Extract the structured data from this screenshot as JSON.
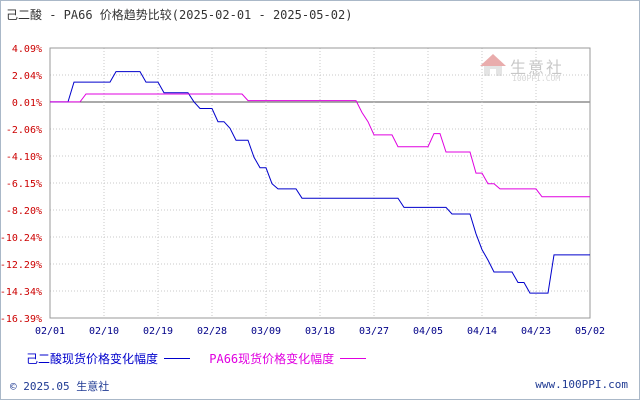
{
  "title": "己二酸 - PA66 价格趋势比较(2025-02-01 - 2025-05-02)",
  "watermark": {
    "text": "生意社",
    "url": "100PPI.COM"
  },
  "footer": {
    "left": "© 2025.05 生意社",
    "right": "www.100PPI.com"
  },
  "colors": {
    "series1": "#0000cc",
    "series2": "#e000e0",
    "ytick": "#cc0000",
    "xtick": "#000088",
    "grid": "#c8c8c8",
    "zero": "#555555"
  },
  "chart_data": {
    "type": "line",
    "title": "己二酸 - PA66 价格趋势比较(2025-02-01 - 2025-05-02)",
    "xlabel": "",
    "ylabel": "",
    "x_ticks": [
      "02/01",
      "02/10",
      "02/19",
      "02/28",
      "03/09",
      "03/18",
      "03/27",
      "04/05",
      "04/14",
      "04/23",
      "05/02"
    ],
    "y_ticks": [
      "4.09%",
      "2.04%",
      "0.01%",
      "-2.06%",
      "-4.10%",
      "-6.15%",
      "-8.20%",
      "-10.24%",
      "-12.29%",
      "-14.34%",
      "-16.39%"
    ],
    "ylim": [
      -16.39,
      4.09
    ],
    "grid": true,
    "legend_position": "bottom",
    "series": [
      {
        "name": "己二酸现货价格变化幅度",
        "points": [
          [
            "2025-02-01",
            0.0
          ],
          [
            "2025-02-04",
            0.0
          ],
          [
            "2025-02-05",
            1.5
          ],
          [
            "2025-02-11",
            1.5
          ],
          [
            "2025-02-12",
            2.3
          ],
          [
            "2025-02-16",
            2.3
          ],
          [
            "2025-02-17",
            1.5
          ],
          [
            "2025-02-19",
            1.5
          ],
          [
            "2025-02-20",
            0.7
          ],
          [
            "2025-02-24",
            0.7
          ],
          [
            "2025-02-25",
            0.0
          ],
          [
            "2025-02-26",
            -0.5
          ],
          [
            "2025-02-28",
            -0.5
          ],
          [
            "2025-03-01",
            -1.5
          ],
          [
            "2025-03-02",
            -1.5
          ],
          [
            "2025-03-03",
            -2.0
          ],
          [
            "2025-03-04",
            -2.9
          ],
          [
            "2025-03-06",
            -2.9
          ],
          [
            "2025-03-07",
            -4.2
          ],
          [
            "2025-03-08",
            -5.0
          ],
          [
            "2025-03-09",
            -5.0
          ],
          [
            "2025-03-10",
            -6.2
          ],
          [
            "2025-03-11",
            -6.6
          ],
          [
            "2025-03-14",
            -6.6
          ],
          [
            "2025-03-15",
            -7.3
          ],
          [
            "2025-03-31",
            -7.3
          ],
          [
            "2025-04-01",
            -8.0
          ],
          [
            "2025-04-08",
            -8.0
          ],
          [
            "2025-04-09",
            -8.5
          ],
          [
            "2025-04-12",
            -8.5
          ],
          [
            "2025-04-13",
            -10.0
          ],
          [
            "2025-04-14",
            -11.2
          ],
          [
            "2025-04-15",
            -12.0
          ],
          [
            "2025-04-16",
            -12.9
          ],
          [
            "2025-04-19",
            -12.9
          ],
          [
            "2025-04-20",
            -13.7
          ],
          [
            "2025-04-21",
            -13.7
          ],
          [
            "2025-04-22",
            -14.5
          ],
          [
            "2025-04-25",
            -14.5
          ],
          [
            "2025-04-26",
            -11.6
          ],
          [
            "2025-05-02",
            -11.6
          ]
        ]
      },
      {
        "name": "PA66现货价格变化幅度",
        "points": [
          [
            "2025-02-01",
            0.0
          ],
          [
            "2025-02-06",
            0.0
          ],
          [
            "2025-02-07",
            0.6
          ],
          [
            "2025-02-26",
            0.6
          ],
          [
            "2025-02-27",
            0.6
          ],
          [
            "2025-03-05",
            0.6
          ],
          [
            "2025-03-06",
            0.1
          ],
          [
            "2025-03-24",
            0.1
          ],
          [
            "2025-03-25",
            -0.8
          ],
          [
            "2025-03-26",
            -1.5
          ],
          [
            "2025-03-27",
            -2.5
          ],
          [
            "2025-03-30",
            -2.5
          ],
          [
            "2025-03-31",
            -3.4
          ],
          [
            "2025-04-05",
            -3.4
          ],
          [
            "2025-04-06",
            -2.4
          ],
          [
            "2025-04-07",
            -2.4
          ],
          [
            "2025-04-08",
            -3.8
          ],
          [
            "2025-04-12",
            -3.8
          ],
          [
            "2025-04-13",
            -5.4
          ],
          [
            "2025-04-14",
            -5.4
          ],
          [
            "2025-04-15",
            -6.2
          ],
          [
            "2025-04-16",
            -6.2
          ],
          [
            "2025-04-17",
            -6.6
          ],
          [
            "2025-04-23",
            -6.6
          ],
          [
            "2025-04-24",
            -7.2
          ],
          [
            "2025-05-02",
            -7.2
          ]
        ]
      }
    ]
  }
}
